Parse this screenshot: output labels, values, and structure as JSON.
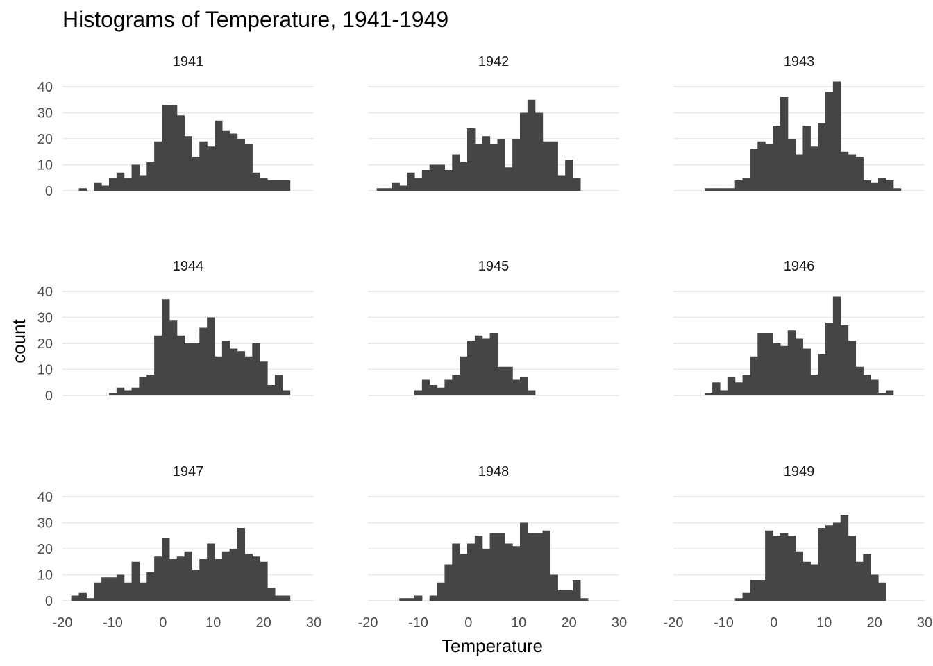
{
  "chart_data": {
    "type": "bar",
    "subtype": "faceted-histogram",
    "title": "Histograms of Temperature, 1941-1949",
    "xlabel": "Temperature",
    "ylabel": "count",
    "xlim": [
      -20,
      30
    ],
    "ylim": [
      0,
      40
    ],
    "xticks": [
      "-20",
      "-10",
      "0",
      "10",
      "20",
      "30"
    ],
    "yticks": [
      "0",
      "10",
      "20",
      "30",
      "40"
    ],
    "grid": true,
    "bin_width": 1.5,
    "bar_color": "#454545",
    "gridline_color": "#ebebeb",
    "panels": [
      {
        "label": "1941",
        "bins": [
          [
            -16,
            1
          ],
          [
            -13,
            3
          ],
          [
            -11.5,
            2
          ],
          [
            -10,
            5
          ],
          [
            -8.5,
            7
          ],
          [
            -7,
            5
          ],
          [
            -5.5,
            10
          ],
          [
            -4,
            6
          ],
          [
            -2.5,
            11
          ],
          [
            -1,
            19
          ],
          [
            0.5,
            33
          ],
          [
            2,
            33
          ],
          [
            3.5,
            29
          ],
          [
            5,
            21
          ],
          [
            6.5,
            13
          ],
          [
            8,
            19
          ],
          [
            9.5,
            17
          ],
          [
            11,
            27
          ],
          [
            12.5,
            23
          ],
          [
            14,
            22
          ],
          [
            15.5,
            20
          ],
          [
            17,
            18
          ],
          [
            18.5,
            7
          ],
          [
            20,
            5
          ],
          [
            21.5,
            4
          ],
          [
            23,
            4
          ],
          [
            24.5,
            4
          ]
        ]
      },
      {
        "label": "1942",
        "bins": [
          [
            -17.5,
            1
          ],
          [
            -16,
            1
          ],
          [
            -14.5,
            3
          ],
          [
            -13,
            2
          ],
          [
            -11.5,
            7
          ],
          [
            -10,
            5
          ],
          [
            -8.5,
            8
          ],
          [
            -7,
            10
          ],
          [
            -5.5,
            10
          ],
          [
            -4,
            8
          ],
          [
            -2.5,
            14
          ],
          [
            -1,
            11
          ],
          [
            0.5,
            24
          ],
          [
            2,
            18
          ],
          [
            3.5,
            21
          ],
          [
            5,
            18
          ],
          [
            6.5,
            20
          ],
          [
            8,
            9
          ],
          [
            9.5,
            20
          ],
          [
            11,
            30
          ],
          [
            12.5,
            35
          ],
          [
            14,
            30
          ],
          [
            15.5,
            19
          ],
          [
            17,
            19
          ],
          [
            18.5,
            6
          ],
          [
            20,
            12
          ],
          [
            21.5,
            5
          ]
        ]
      },
      {
        "label": "1943",
        "bins": [
          [
            -13,
            1
          ],
          [
            -11.5,
            1
          ],
          [
            -10,
            1
          ],
          [
            -8.5,
            1
          ],
          [
            -7,
            4
          ],
          [
            -5.5,
            5
          ],
          [
            -4,
            16
          ],
          [
            -2.5,
            19
          ],
          [
            -1,
            18
          ],
          [
            0.5,
            25
          ],
          [
            2,
            36
          ],
          [
            3.5,
            20
          ],
          [
            5,
            14
          ],
          [
            6.5,
            25
          ],
          [
            8,
            17
          ],
          [
            9.5,
            26
          ],
          [
            11,
            38
          ],
          [
            12.5,
            42
          ],
          [
            14,
            15
          ],
          [
            15.5,
            14
          ],
          [
            17,
            13
          ],
          [
            18.5,
            4
          ],
          [
            20,
            3
          ],
          [
            21.5,
            5
          ],
          [
            23,
            4
          ],
          [
            24.5,
            1
          ]
        ]
      },
      {
        "label": "1944",
        "bins": [
          [
            -10,
            1
          ],
          [
            -8.5,
            3
          ],
          [
            -7,
            2
          ],
          [
            -5.5,
            3
          ],
          [
            -4,
            7
          ],
          [
            -2.5,
            8
          ],
          [
            -1,
            23
          ],
          [
            0.5,
            37
          ],
          [
            2,
            29
          ],
          [
            3.5,
            23
          ],
          [
            5,
            20
          ],
          [
            6.5,
            20
          ],
          [
            8,
            26
          ],
          [
            9.5,
            30
          ],
          [
            11,
            15
          ],
          [
            12.5,
            21
          ],
          [
            14,
            18
          ],
          [
            15.5,
            17
          ],
          [
            17,
            15
          ],
          [
            18.5,
            20
          ],
          [
            20,
            13
          ],
          [
            21.5,
            4
          ],
          [
            23,
            8
          ],
          [
            24.5,
            2
          ]
        ]
      },
      {
        "label": "1945",
        "bins": [
          [
            -10,
            2
          ],
          [
            -8.5,
            6
          ],
          [
            -7,
            4
          ],
          [
            -5.5,
            3
          ],
          [
            -4,
            6
          ],
          [
            -2.5,
            8
          ],
          [
            -1,
            15
          ],
          [
            0.5,
            21
          ],
          [
            2,
            23
          ],
          [
            3.5,
            22
          ],
          [
            5,
            24
          ],
          [
            6.5,
            11
          ],
          [
            8,
            11
          ],
          [
            9.5,
            6
          ],
          [
            11,
            7
          ],
          [
            12.5,
            2
          ]
        ]
      },
      {
        "label": "1946",
        "bins": [
          [
            -13,
            1
          ],
          [
            -11.5,
            5
          ],
          [
            -10,
            2
          ],
          [
            -8.5,
            7
          ],
          [
            -7,
            5
          ],
          [
            -5.5,
            8
          ],
          [
            -4,
            15
          ],
          [
            -2.5,
            24
          ],
          [
            -1,
            24
          ],
          [
            0.5,
            20
          ],
          [
            2,
            19
          ],
          [
            3.5,
            25
          ],
          [
            5,
            22
          ],
          [
            6.5,
            18
          ],
          [
            8,
            8
          ],
          [
            9.5,
            16
          ],
          [
            11,
            28
          ],
          [
            12.5,
            38
          ],
          [
            14,
            27
          ],
          [
            15.5,
            21
          ],
          [
            17,
            11
          ],
          [
            18.5,
            8
          ],
          [
            20,
            6
          ],
          [
            21.5,
            1
          ],
          [
            23,
            2
          ]
        ]
      },
      {
        "label": "1947",
        "bins": [
          [
            -17.5,
            2
          ],
          [
            -16,
            3
          ],
          [
            -14.5,
            1
          ],
          [
            -13,
            7
          ],
          [
            -11.5,
            9
          ],
          [
            -10,
            9
          ],
          [
            -8.5,
            10
          ],
          [
            -7,
            7
          ],
          [
            -5.5,
            15
          ],
          [
            -4,
            7
          ],
          [
            -2.5,
            11
          ],
          [
            -1,
            17
          ],
          [
            0.5,
            24
          ],
          [
            2,
            16
          ],
          [
            3.5,
            17
          ],
          [
            5,
            19
          ],
          [
            6.5,
            12
          ],
          [
            8,
            16
          ],
          [
            9.5,
            22
          ],
          [
            11,
            16
          ],
          [
            12.5,
            19
          ],
          [
            14,
            20
          ],
          [
            15.5,
            28
          ],
          [
            17,
            18
          ],
          [
            18.5,
            17
          ],
          [
            20,
            15
          ],
          [
            21.5,
            5
          ],
          [
            23,
            2
          ],
          [
            24.5,
            2
          ]
        ]
      },
      {
        "label": "1948",
        "bins": [
          [
            -13,
            1
          ],
          [
            -11.5,
            1
          ],
          [
            -10,
            2
          ],
          [
            -7,
            2
          ],
          [
            -5.5,
            7
          ],
          [
            -4,
            14
          ],
          [
            -2.5,
            22
          ],
          [
            -1,
            18
          ],
          [
            0.5,
            22
          ],
          [
            2,
            25
          ],
          [
            3.5,
            20
          ],
          [
            5,
            26
          ],
          [
            6.5,
            26
          ],
          [
            8,
            22
          ],
          [
            9.5,
            21
          ],
          [
            11,
            30
          ],
          [
            12.5,
            26
          ],
          [
            14,
            26
          ],
          [
            15.5,
            27
          ],
          [
            17,
            10
          ],
          [
            18.5,
            4
          ],
          [
            20,
            4
          ],
          [
            21.5,
            8
          ],
          [
            23,
            1
          ]
        ]
      },
      {
        "label": "1949",
        "bins": [
          [
            -7,
            1
          ],
          [
            -5.5,
            3
          ],
          [
            -4,
            8
          ],
          [
            -2.5,
            8
          ],
          [
            -1,
            27
          ],
          [
            0.5,
            25
          ],
          [
            2,
            26
          ],
          [
            3.5,
            25
          ],
          [
            5,
            19
          ],
          [
            6.5,
            15
          ],
          [
            8,
            14
          ],
          [
            9.5,
            28
          ],
          [
            11,
            29
          ],
          [
            12.5,
            30
          ],
          [
            14,
            33
          ],
          [
            15.5,
            25
          ],
          [
            17,
            15
          ],
          [
            18.5,
            18
          ],
          [
            20,
            10
          ],
          [
            21.5,
            7
          ]
        ]
      }
    ]
  }
}
